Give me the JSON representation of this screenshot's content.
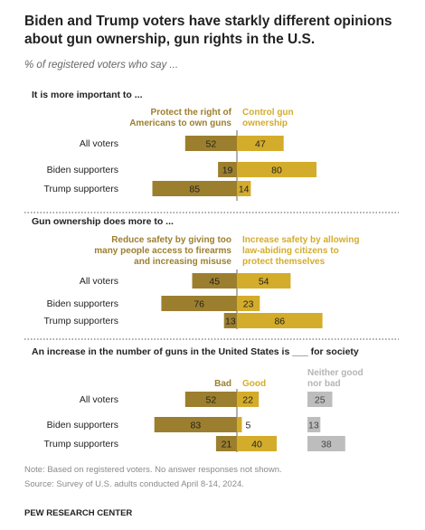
{
  "header": {
    "title": "Biden and Trump voters have starkly different opinions about gun ownership, gun rights in the U.S.",
    "subtitle": "% of registered voters who say ..."
  },
  "footer": {
    "note": "Note: Based on registered voters. No answer responses not shown.",
    "source": "Source: Survey of U.S. adults conducted April 8-14, 2024.",
    "brand": "PEW RESEARCH CENTER"
  },
  "colors": {
    "dark_gold": "#9c7f2e",
    "gold": "#d4ac2b",
    "gray": "#bdbdbd",
    "divider": "#555555"
  },
  "chart_data": [
    {
      "type": "bar",
      "title": "It is more important to ...",
      "categories": [
        "All voters",
        "Biden supporters",
        "Trump supporters"
      ],
      "series": [
        {
          "name": "Protect the right of Americans to own guns",
          "values": [
            52,
            19,
            85
          ]
        },
        {
          "name": "Control gun ownership",
          "values": [
            47,
            80,
            14
          ]
        }
      ]
    },
    {
      "type": "bar",
      "title": "Gun ownership does more to ...",
      "categories": [
        "All voters",
        "Biden supporters",
        "Trump supporters"
      ],
      "series": [
        {
          "name": "Reduce safety by giving too many people access to firearms and increasing misuse",
          "values": [
            45,
            76,
            13
          ]
        },
        {
          "name": "Increase safety by allowing law-abiding citizens to protect themselves",
          "values": [
            54,
            23,
            86
          ]
        }
      ]
    },
    {
      "type": "bar",
      "title": "An increase in the number of guns in the United States is ___ for society",
      "categories": [
        "All voters",
        "Biden supporters",
        "Trump supporters"
      ],
      "series": [
        {
          "name": "Bad",
          "values": [
            52,
            83,
            21
          ]
        },
        {
          "name": "Good",
          "values": [
            22,
            5,
            40
          ]
        },
        {
          "name": "Neither good nor bad",
          "values": [
            25,
            13,
            38
          ]
        }
      ]
    }
  ]
}
